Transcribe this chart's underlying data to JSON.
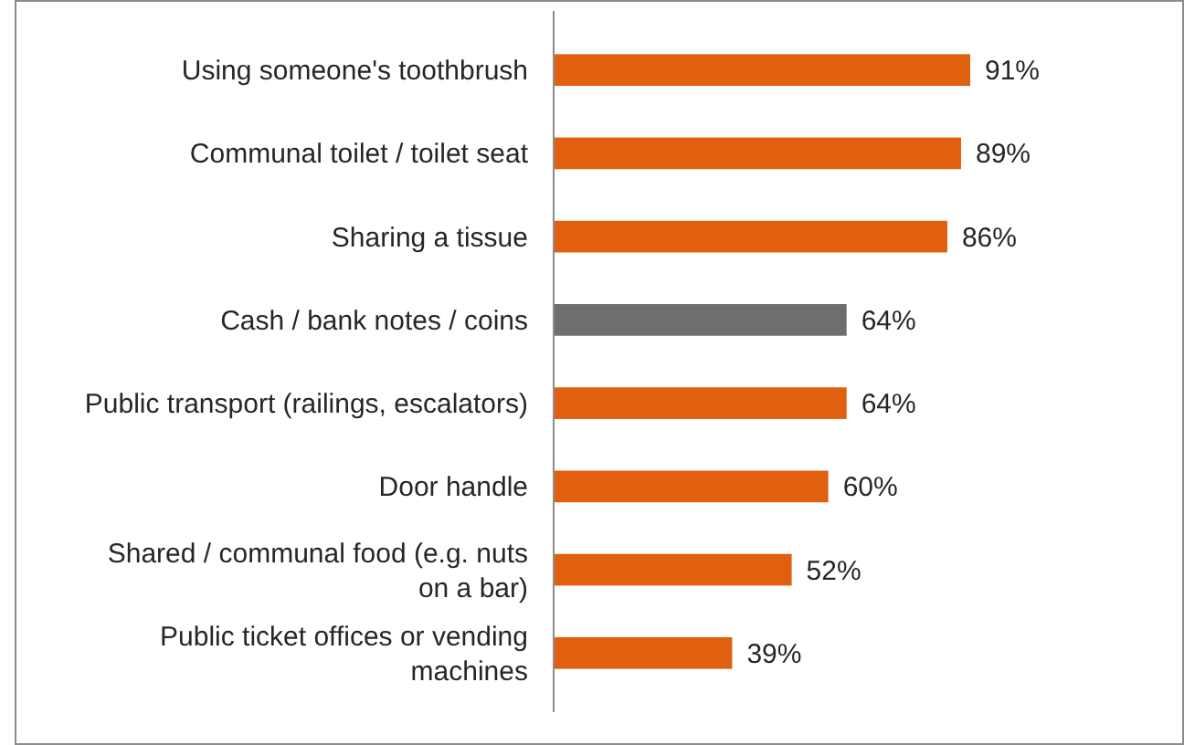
{
  "chart_data": {
    "type": "bar",
    "orientation": "horizontal",
    "categories": [
      "Using someone's toothbrush",
      "Communal toilet / toilet seat",
      "Sharing a tissue",
      "Cash / bank notes / coins",
      "Public transport (railings, escalators)",
      "Door handle",
      "Shared / communal food (e.g. nuts on a bar)",
      "Public ticket offices or vending machines"
    ],
    "values": [
      91,
      89,
      86,
      64,
      64,
      60,
      52,
      39
    ],
    "colors": [
      "#e06010",
      "#e06010",
      "#e06010",
      "#6e6e6e",
      "#e06010",
      "#e06010",
      "#e06010",
      "#e06010"
    ],
    "value_labels": [
      "91%",
      "89%",
      "86%",
      "64%",
      "64%",
      "60%",
      "52%",
      "39%"
    ],
    "tick_labels": "y"
  }
}
